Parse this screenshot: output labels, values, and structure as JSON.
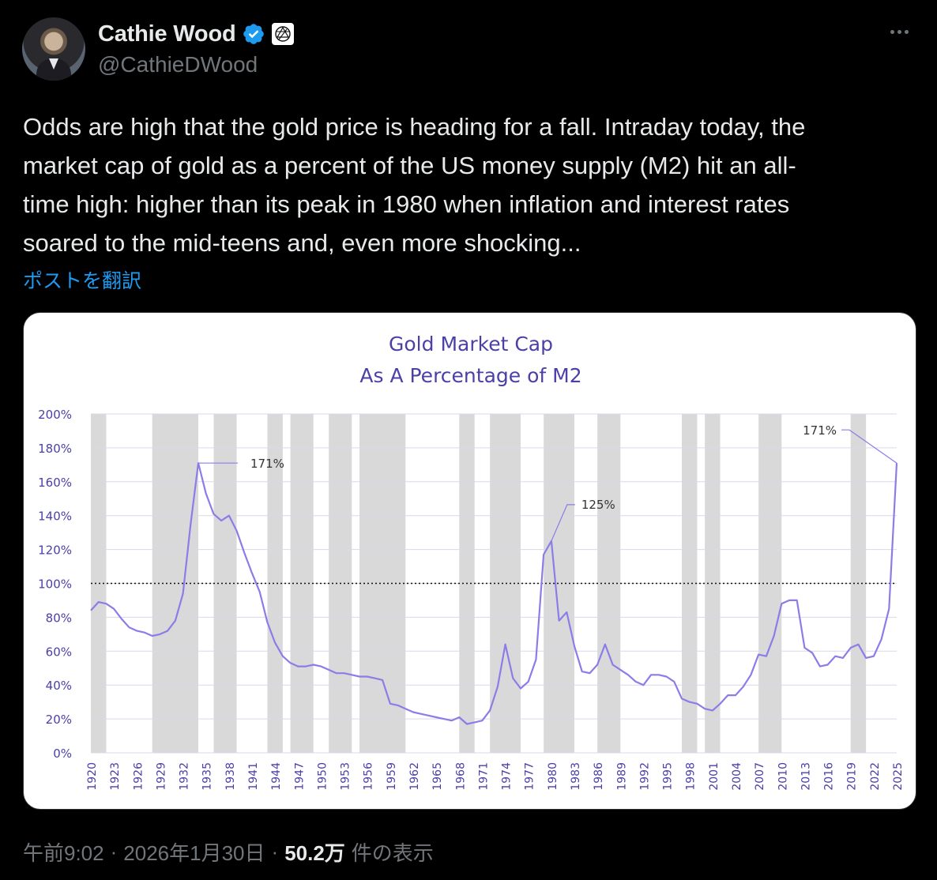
{
  "author": {
    "display_name": "Cathie Wood",
    "handle": "@CathieDWood"
  },
  "tweet": {
    "text": "Odds are high that the gold price is heading for a fall. Intraday today, the\nmarket cap of gold as a percent of the US money supply (M2) hit an all-\ntime high: higher than its peak in 1980 when inflation and interest rates\nsoared to the mid-teens and, even more shocking...",
    "translate_label": "ポストを翻訳",
    "time": "午前9:02",
    "date": "2026年1月30日",
    "separator": "·",
    "views_count": "50.2万",
    "views_label": "件の表示"
  },
  "colors": {
    "background": "#000000",
    "text": "#e7e9ea",
    "secondary": "#71767b",
    "link": "#1d9bf0",
    "verified": "#1d9bf0",
    "chart_line": "#8b7de8",
    "chart_title": "#4b3fa8",
    "recession_band": "#d9d9d9"
  },
  "chart_data": {
    "type": "line",
    "title": "Gold Market Cap",
    "subtitle": "As A Percentage of M2",
    "xlabel": "",
    "ylabel": "",
    "xlim": [
      1920,
      2025
    ],
    "ylim": [
      0,
      200
    ],
    "y_ticks": [
      "0%",
      "20%",
      "40%",
      "60%",
      "80%",
      "100%",
      "120%",
      "140%",
      "160%",
      "180%",
      "200%"
    ],
    "x_ticks": [
      "1920",
      "1923",
      "1926",
      "1929",
      "1932",
      "1935",
      "1938",
      "1941",
      "1944",
      "1947",
      "1950",
      "1953",
      "1956",
      "1959",
      "1962",
      "1965",
      "1968",
      "1971",
      "1974",
      "1977",
      "1980",
      "1983",
      "1986",
      "1989",
      "1992",
      "1995",
      "1998",
      "2001",
      "2004",
      "2007",
      "2010",
      "2013",
      "2016",
      "2019",
      "2022",
      "2025"
    ],
    "reference_line": 100,
    "grid": true,
    "shaded_periods": [
      [
        1920,
        1922
      ],
      [
        1928,
        1934
      ],
      [
        1936,
        1939
      ],
      [
        1943,
        1945
      ],
      [
        1946,
        1949
      ],
      [
        1951,
        1954
      ],
      [
        1955,
        1961
      ],
      [
        1968,
        1970
      ],
      [
        1972,
        1976
      ],
      [
        1979,
        1983
      ],
      [
        1986,
        1989
      ],
      [
        1997,
        1999
      ],
      [
        2000,
        2002
      ],
      [
        2007,
        2010
      ],
      [
        2019,
        2021
      ]
    ],
    "series": [
      {
        "x": [
          1920,
          1921,
          1922,
          1923,
          1924,
          1925,
          1926,
          1927,
          1928,
          1929,
          1930,
          1931,
          1932,
          1933,
          1934,
          1935,
          1936,
          1937,
          1938,
          1939,
          1940,
          1941,
          1942,
          1943,
          1944,
          1945,
          1946,
          1947,
          1948,
          1949,
          1950,
          1951,
          1952,
          1953,
          1954,
          1955,
          1956,
          1957,
          1958,
          1959,
          1960,
          1961,
          1962,
          1963,
          1964,
          1965,
          1966,
          1967,
          1968,
          1969,
          1970,
          1971,
          1972,
          1973,
          1974,
          1975,
          1976,
          1977,
          1978,
          1979,
          1980,
          1981,
          1982,
          1983,
          1984,
          1985,
          1986,
          1987,
          1988,
          1989,
          1990,
          1991,
          1992,
          1993,
          1994,
          1995,
          1996,
          1997,
          1998,
          1999,
          2000,
          2001,
          2002,
          2003,
          2004,
          2005,
          2006,
          2007,
          2008,
          2009,
          2010,
          2011,
          2012,
          2013,
          2014,
          2015,
          2016,
          2017,
          2018,
          2019,
          2020,
          2021,
          2022,
          2023,
          2024,
          2025
        ],
        "values": [
          84,
          89,
          88,
          85,
          79,
          74,
          72,
          71,
          69,
          70,
          72,
          78,
          94,
          135,
          171,
          153,
          141,
          137,
          140,
          131,
          118,
          106,
          95,
          77,
          65,
          57,
          53,
          51,
          51,
          52,
          51,
          49,
          47,
          47,
          46,
          45,
          45,
          44,
          43,
          29,
          28,
          26,
          24,
          23,
          22,
          21,
          20,
          19,
          21,
          17,
          18,
          19,
          25,
          39,
          64,
          44,
          38,
          42,
          55,
          117,
          125,
          78,
          83,
          63,
          48,
          47,
          52,
          64,
          52,
          49,
          46,
          42,
          40,
          46,
          46,
          45,
          42,
          32,
          30,
          29,
          26,
          25,
          29,
          34,
          34,
          39,
          46,
          58,
          57,
          69,
          88,
          90,
          90,
          62,
          59,
          51,
          52,
          57,
          56,
          62,
          64,
          56,
          57,
          67,
          85,
          171
        ]
      }
    ],
    "annotations": [
      {
        "label": "171%",
        "x": 1934,
        "y": 171
      },
      {
        "label": "125%",
        "x": 1980,
        "y": 125
      },
      {
        "label": "171%",
        "x": 2025,
        "y": 171
      }
    ]
  }
}
